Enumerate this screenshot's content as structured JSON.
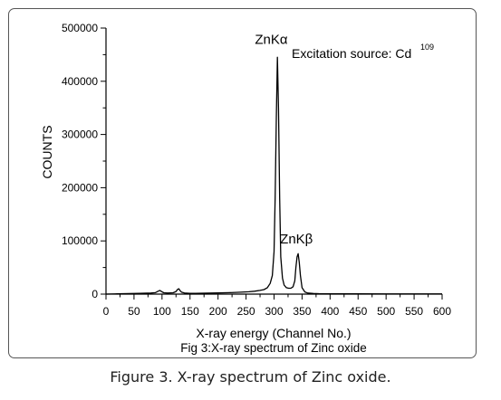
{
  "chart_data": {
    "type": "line",
    "xlabel": "X-ray energy (Channel No.)",
    "ylabel": "COUNTS",
    "xlim": [
      0,
      600
    ],
    "ylim": [
      0,
      500000
    ],
    "x_ticks": [
      "0",
      "50",
      "100",
      "150",
      "200",
      "250",
      "300",
      "350",
      "400",
      "450",
      "500",
      "550",
      "600"
    ],
    "y_ticks": [
      "0",
      "100000",
      "200000",
      "300000",
      "400000",
      "500000"
    ],
    "grid": false,
    "series": [
      {
        "x": [
          0,
          20,
          40,
          60,
          80,
          88,
          93,
          96,
          99,
          103,
          110,
          120,
          125,
          128,
          130,
          132,
          135,
          140,
          150,
          160,
          180,
          200,
          220,
          240,
          255,
          265,
          275,
          282,
          288,
          293,
          297,
          300,
          302,
          304,
          306,
          308,
          310,
          312,
          315,
          318,
          322,
          326,
          330,
          334,
          337,
          339,
          341,
          343,
          345,
          347,
          350,
          355,
          360,
          370,
          380,
          400,
          450,
          500,
          550,
          600
        ],
        "y": [
          0,
          500,
          1000,
          1500,
          2000,
          2800,
          5500,
          7000,
          5000,
          2500,
          2000,
          2500,
          5000,
          9000,
          10000,
          7000,
          3500,
          2000,
          1500,
          1500,
          1800,
          2200,
          2800,
          3500,
          4500,
          5500,
          7000,
          8500,
          12000,
          20000,
          35000,
          80000,
          180000,
          330000,
          445000,
          350000,
          180000,
          70000,
          30000,
          17000,
          12000,
          11000,
          11000,
          14000,
          25000,
          50000,
          70000,
          76000,
          60000,
          35000,
          12000,
          4000,
          2000,
          1200,
          900,
          600,
          500,
          400,
          300,
          300
        ]
      }
    ],
    "annotations": [
      {
        "text": "ZnKα",
        "x": 295,
        "y": 470000
      },
      {
        "text": "ZnKβ",
        "x": 340,
        "y": 95000
      },
      {
        "text": "Excitation source: Cd",
        "superscript": "109",
        "position": "top-right"
      }
    ],
    "subtitle": "Fig 3:X-ray spectrum of Zinc oxide"
  },
  "caption": "Figure 3. X-ray spectrum of Zinc oxide."
}
